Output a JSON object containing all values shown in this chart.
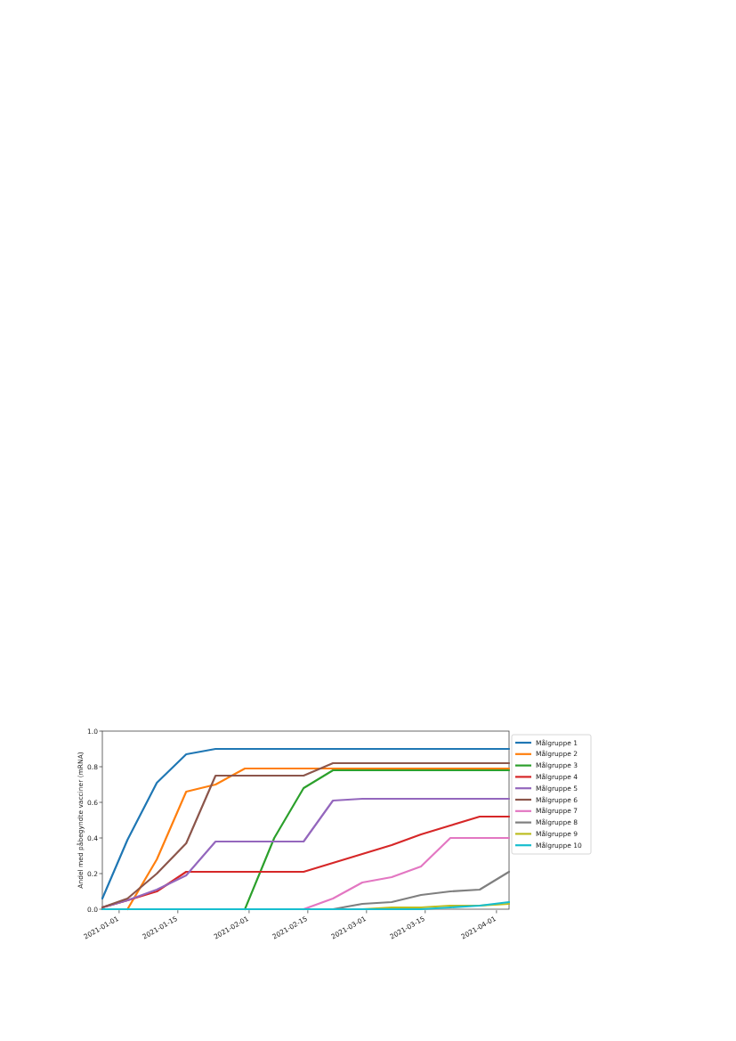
{
  "chart_data": {
    "type": "line",
    "ylabel": "Andel med påbegyndte vacciner (mRNA)",
    "x": [
      "2020-12-28",
      "2021-01-03",
      "2021-01-10",
      "2021-01-17",
      "2021-01-24",
      "2021-01-31",
      "2021-02-07",
      "2021-02-14",
      "2021-02-21",
      "2021-02-28",
      "2021-03-07",
      "2021-03-14",
      "2021-03-21",
      "2021-03-28",
      "2021-04-04"
    ],
    "xlim": [
      "2020-12-28",
      "2021-04-04"
    ],
    "xticks": [
      "2021-01-01",
      "2021-01-15",
      "2021-02-01",
      "2021-02-15",
      "2021-03-01",
      "2021-03-15",
      "2021-04-01"
    ],
    "ylim": [
      0,
      1
    ],
    "yticks": [
      {
        "value": 0,
        "label": "0.0"
      },
      {
        "value": 0.2,
        "label": "0.2"
      },
      {
        "value": 0.4,
        "label": "0.4"
      },
      {
        "value": 0.6,
        "label": "0.6"
      },
      {
        "value": 0.8,
        "label": "0.8"
      },
      {
        "value": 1,
        "label": "1.0"
      }
    ],
    "legend": "right",
    "series": [
      {
        "name": "Målgruppe 1",
        "color": "#1f77b4",
        "values": [
          0.06,
          0.39,
          0.71,
          0.87,
          0.9,
          0.9,
          0.9,
          0.9,
          0.9,
          0.9,
          0.9,
          0.9,
          0.9,
          0.9,
          0.9
        ]
      },
      {
        "name": "Målgruppe 2",
        "color": "#ff7f0e",
        "values": [
          null,
          0,
          0.28,
          0.66,
          0.7,
          0.79,
          0.79,
          0.79,
          0.79,
          0.79,
          0.79,
          0.79,
          0.79,
          0.79,
          0.79
        ]
      },
      {
        "name": "Målgruppe 3",
        "color": "#2ca02c",
        "values": [
          null,
          null,
          null,
          null,
          null,
          0,
          0.4,
          0.68,
          0.78,
          0.78,
          0.78,
          0.78,
          0.78,
          0.78,
          0.78
        ]
      },
      {
        "name": "Målgruppe 4",
        "color": "#d62728",
        "values": [
          0.01,
          0.05,
          0.1,
          0.21,
          0.21,
          0.21,
          0.21,
          0.21,
          0.26,
          0.31,
          0.36,
          0.42,
          0.47,
          0.52,
          0.52
        ]
      },
      {
        "name": "Målgruppe 5",
        "color": "#9467bd",
        "values": [
          0.01,
          0.05,
          0.11,
          0.19,
          0.38,
          0.38,
          0.38,
          0.38,
          0.61,
          0.62,
          0.62,
          0.62,
          0.62,
          0.62,
          0.62
        ]
      },
      {
        "name": "Målgruppe 6",
        "color": "#8c564b",
        "values": [
          0.01,
          0.06,
          0.2,
          0.37,
          0.75,
          0.75,
          0.75,
          0.75,
          0.82,
          0.82,
          0.82,
          0.82,
          0.82,
          0.82,
          0.82
        ]
      },
      {
        "name": "Målgruppe 7",
        "color": "#e377c2",
        "values": [
          null,
          null,
          null,
          null,
          null,
          null,
          null,
          0,
          0.06,
          0.15,
          0.18,
          0.24,
          0.4,
          0.4,
          0.4
        ]
      },
      {
        "name": "Målgruppe 8",
        "color": "#7f7f7f",
        "values": [
          null,
          null,
          null,
          null,
          null,
          null,
          null,
          null,
          0,
          0.03,
          0.04,
          0.08,
          0.1,
          0.11,
          0.21
        ]
      },
      {
        "name": "Målgruppe 9",
        "color": "#bcbd22",
        "values": [
          null,
          null,
          null,
          null,
          null,
          null,
          null,
          null,
          null,
          0,
          0.01,
          0.01,
          0.02,
          0.02,
          0.03
        ]
      },
      {
        "name": "Målgruppe 10",
        "color": "#17becf",
        "values": [
          0,
          0,
          0,
          0,
          0,
          0,
          0,
          0,
          0,
          0,
          0,
          0,
          0.01,
          0.02,
          0.04
        ]
      }
    ]
  }
}
